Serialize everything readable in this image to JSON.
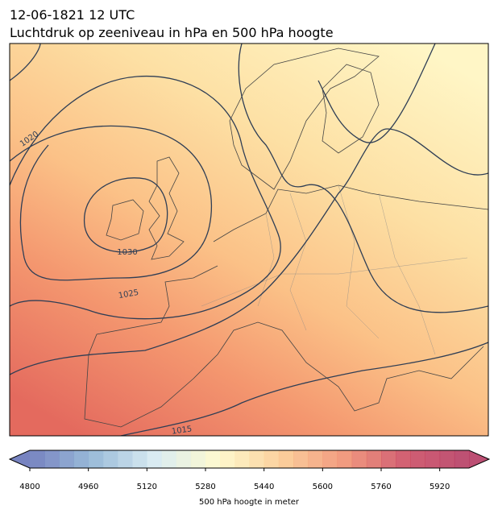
{
  "title": [
    "12-06-1821 12 UTC",
    "Luchtdruk op zeeniveau in hPa en 500 hPa hoogte"
  ],
  "map": {
    "contour_labels": [
      "1020",
      "1030",
      "1025",
      "1015"
    ]
  },
  "colorbar": {
    "label": "500 hPa hoogte in meter",
    "range": [
      4800,
      6000
    ],
    "ticks": [
      4800,
      4960,
      5120,
      5280,
      5440,
      5600,
      5760,
      5920
    ],
    "colors": [
      "#5f6db5",
      "#89b0d3",
      "#d3e9f0",
      "#fef8c6",
      "#fbc88b",
      "#ef8a6a",
      "#c9435a",
      "#b0305a"
    ]
  }
}
